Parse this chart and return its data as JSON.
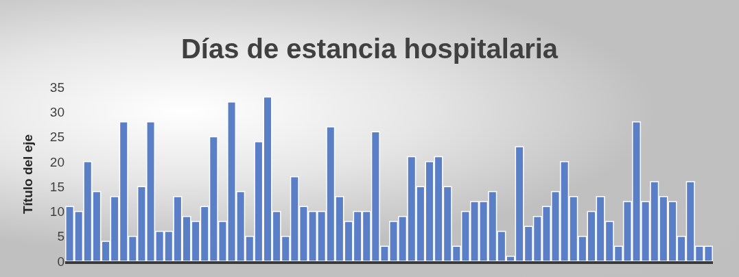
{
  "chart_data": {
    "type": "bar",
    "title": "Días de estancia hospitalaria",
    "ylabel": "Título del eje",
    "categories": [
      null,
      null,
      null,
      null,
      null,
      null,
      null,
      null,
      null,
      null,
      null,
      null,
      null,
      null,
      null,
      null,
      null,
      null,
      null,
      null,
      null,
      null,
      null,
      null,
      null,
      null,
      null,
      null,
      null,
      null,
      null,
      null,
      null,
      null,
      null,
      null,
      null,
      null,
      null,
      null,
      null,
      null,
      null,
      null,
      null,
      null,
      null,
      null,
      null,
      null,
      null,
      null,
      null,
      null,
      null,
      null,
      null,
      null,
      null,
      null,
      null,
      null,
      null,
      null,
      null,
      null,
      null,
      null,
      null,
      null,
      null,
      null
    ],
    "values": [
      11,
      10,
      20,
      14,
      4,
      13,
      28,
      5,
      15,
      28,
      6,
      6,
      13,
      9,
      8,
      11,
      25,
      8,
      32,
      14,
      5,
      24,
      33,
      10,
      5,
      17,
      11,
      10,
      10,
      27,
      13,
      8,
      10,
      10,
      26,
      3,
      8,
      9,
      21,
      15,
      20,
      21,
      15,
      3,
      10,
      12,
      12,
      14,
      6,
      1,
      23,
      7,
      9,
      11,
      14,
      20,
      13,
      5,
      10,
      13,
      8,
      3,
      12,
      28,
      12,
      16,
      13,
      12,
      5,
      16,
      3,
      3
    ],
    "color": "#5b7fc7",
    "ylim": [
      0,
      35
    ],
    "yticks": [
      0,
      5,
      10,
      15,
      20,
      25,
      30,
      35
    ],
    "grid": false
  }
}
